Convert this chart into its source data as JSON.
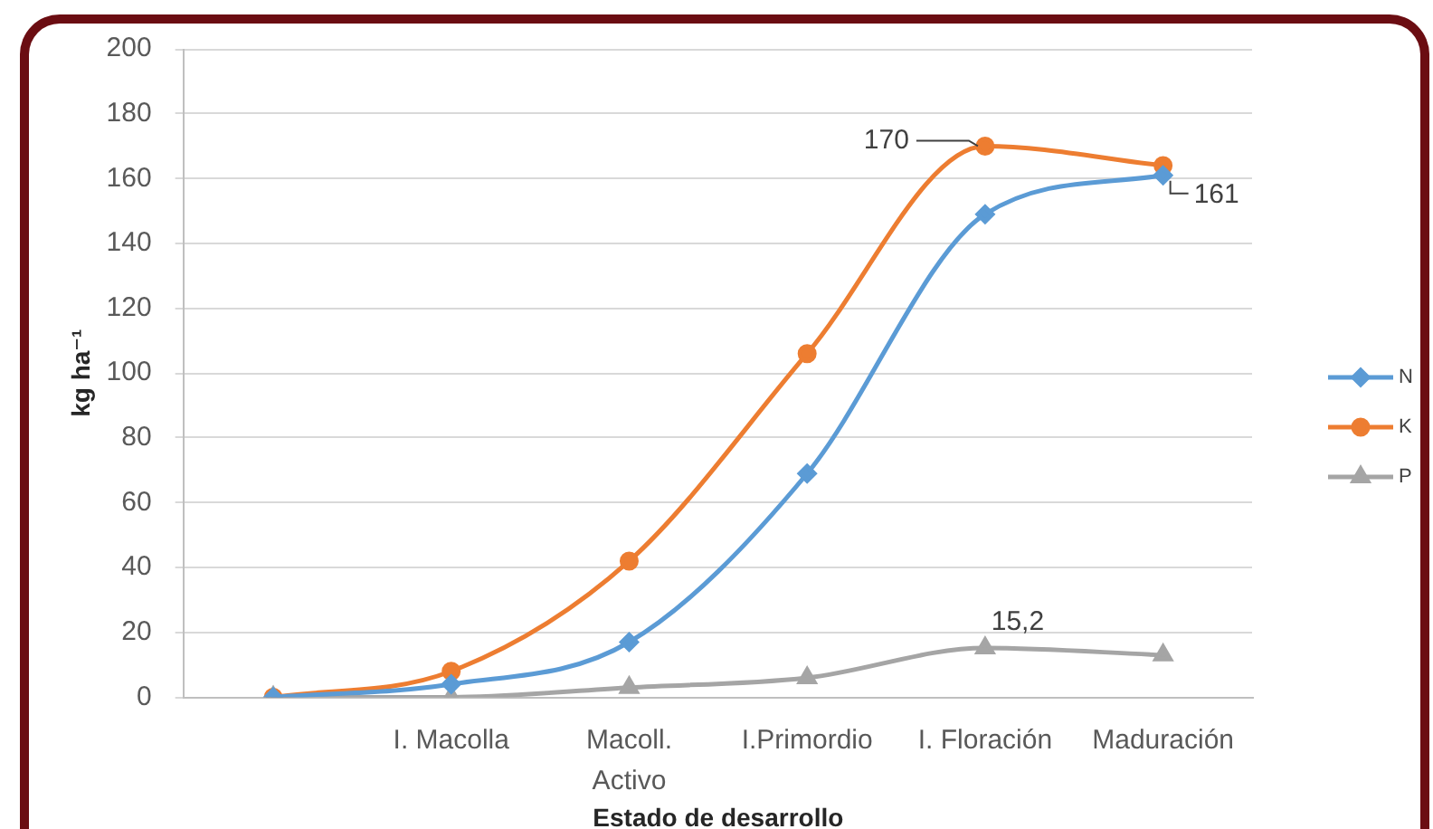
{
  "chart_data": {
    "type": "line",
    "xlabel": "Estado de desarrollo",
    "ylabel": "kg ha⁻¹",
    "categories": [
      null,
      "I. Macolla",
      "Macoll. Activo",
      "I.Primordio",
      "I. Floración",
      "Maduración"
    ],
    "series": [
      {
        "name": "N",
        "color": "#5b9bd5",
        "marker": "diamond",
        "values": [
          0,
          4,
          17,
          69,
          149,
          161
        ],
        "value_labels": [
          null,
          null,
          null,
          null,
          null,
          "161"
        ]
      },
      {
        "name": "K",
        "color": "#ed7d31",
        "marker": "circle",
        "values": [
          0,
          8,
          42,
          106,
          170,
          164
        ],
        "value_labels": [
          null,
          null,
          null,
          null,
          "170",
          null
        ]
      },
      {
        "name": "P",
        "color": "#a5a5a5",
        "marker": "triangle",
        "values": [
          0,
          0,
          3,
          6,
          15.2,
          13
        ],
        "value_labels": [
          null,
          null,
          null,
          null,
          "15,2",
          null
        ]
      }
    ],
    "ylim": [
      0,
      200
    ],
    "yticks": [
      0,
      20,
      40,
      60,
      80,
      100,
      120,
      140,
      160,
      180,
      200
    ],
    "grid": "y",
    "legend": "right"
  }
}
